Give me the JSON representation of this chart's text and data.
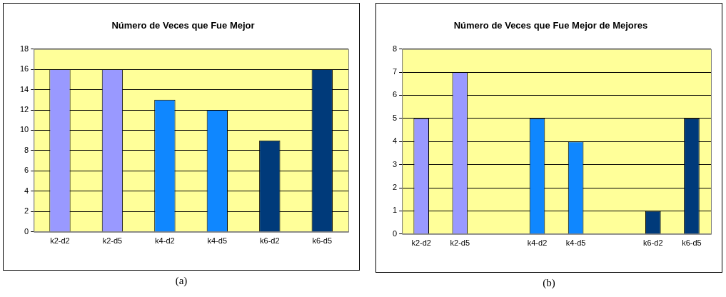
{
  "chart_data": [
    {
      "type": "bar",
      "title": "Número de Veces que Fue Mejor",
      "categories": [
        "k2-d2",
        "k2-d5",
        "k4-d2",
        "k4-d5",
        "k6-d2",
        "k6-d5"
      ],
      "values": [
        16,
        16,
        13,
        12,
        9,
        16
      ],
      "colors": [
        "#9999ff",
        "#9999ff",
        "#0f87ff",
        "#0f87ff",
        "#003a7a",
        "#003a7a"
      ],
      "ylim": [
        0,
        18
      ],
      "yticks": [
        0,
        2,
        4,
        6,
        8,
        10,
        12,
        14,
        16,
        18
      ],
      "grid": "y",
      "legend": false,
      "annotations": [
        "(a)"
      ]
    },
    {
      "type": "bar",
      "title": "Número de Veces que Fue Mejor de Mejores",
      "categories": [
        "k2-d2",
        "k2-d5",
        null,
        "k4-d2",
        "k4-d5",
        null,
        "k6-d2",
        "k6-d5"
      ],
      "values": [
        5,
        7,
        null,
        5,
        4,
        null,
        1,
        5
      ],
      "colors": [
        "#9999ff",
        "#9999ff",
        "#9999ff",
        "#0f87ff",
        "#0f87ff",
        "#0f87ff",
        "#003a7a",
        "#003a7a"
      ],
      "ylim": [
        0,
        8
      ],
      "yticks": [
        0,
        1,
        2,
        3,
        4,
        5,
        6,
        7,
        8
      ],
      "grid": "y",
      "legend": false,
      "annotations": [
        "(b)"
      ]
    }
  ]
}
